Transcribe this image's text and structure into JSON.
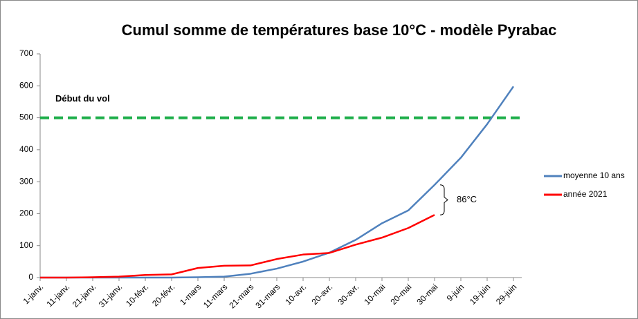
{
  "chart_data": {
    "type": "line",
    "title": "Cumul somme de températures base 10°C - modèle Pyrabac",
    "categories": [
      "1-janv.",
      "11-janv.",
      "21-janv.",
      "31-janv.",
      "10-févr.",
      "20-févr.",
      "1-mars",
      "11-mars",
      "21-mars",
      "31-mars",
      "10-avr.",
      "20-avr.",
      "30-avr.",
      "10-mai",
      "20-mai",
      "30-mai",
      "9-juin",
      "19-juin",
      "29-juin"
    ],
    "series": [
      {
        "name": "moyenne 10 ans",
        "color": "#4f81bd",
        "values": [
          0,
          0,
          0,
          0,
          0,
          0,
          1,
          3,
          12,
          28,
          50,
          78,
          118,
          170,
          210,
          290,
          375,
          480,
          598
        ]
      },
      {
        "name": "année 2021",
        "color": "#ff0000",
        "values": [
          0,
          0,
          1,
          3,
          8,
          10,
          30,
          37,
          38,
          58,
          72,
          77,
          103,
          125,
          155,
          196,
          null,
          null,
          null
        ]
      }
    ],
    "threshold": {
      "value": 500,
      "label": "Début du vol",
      "color": "#1faf4b"
    },
    "annotation": "86°C",
    "ylim": [
      0,
      700
    ],
    "yticks": [
      0,
      100,
      200,
      300,
      400,
      500,
      600,
      700
    ],
    "legend": "right",
    "grid": false
  }
}
